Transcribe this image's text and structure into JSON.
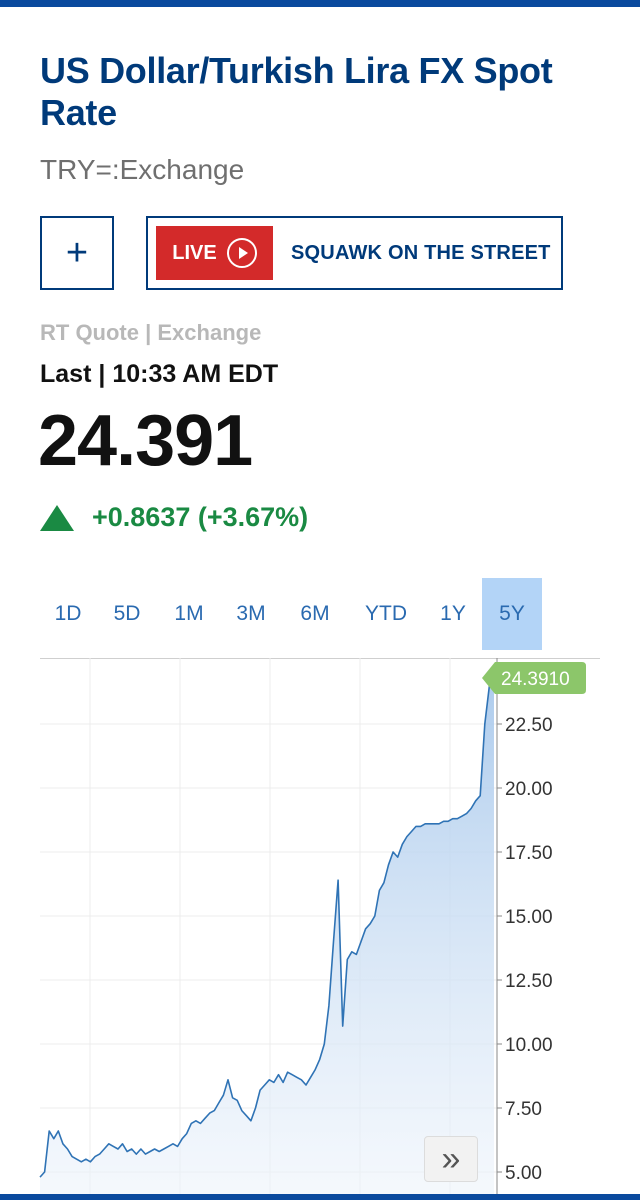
{
  "header": {
    "title": "US Dollar/Turkish Lira FX Spot Rate",
    "symbol": "TRY=:Exchange"
  },
  "actions": {
    "add_label": "+",
    "live_label": "LIVE",
    "live_show": "SQUAWK ON THE STREET"
  },
  "quote": {
    "source": "RT Quote | Exchange",
    "last_label": "Last",
    "time": "10:33 AM EDT",
    "price": "24.391",
    "change": "+0.8637 (+3.67%)"
  },
  "tabs": [
    {
      "label": "1D",
      "active": false
    },
    {
      "label": "5D",
      "active": false
    },
    {
      "label": "1M",
      "active": false
    },
    {
      "label": "3M",
      "active": false
    },
    {
      "label": "6M",
      "active": false
    },
    {
      "label": "YTD",
      "active": false
    },
    {
      "label": "1Y",
      "active": false
    },
    {
      "label": "5Y",
      "active": true
    }
  ],
  "colors": {
    "brand": "#003a7a",
    "positive": "#1a8a43",
    "live": "#d32a2a",
    "line": "#2f73b5",
    "current_tag": "#8cc66a"
  },
  "chart_data": {
    "type": "area",
    "current_value_label": "24.3910",
    "current_value": 24.391,
    "y_ticks": [
      "22.50",
      "20.00",
      "17.50",
      "15.00",
      "12.50",
      "10.00",
      "7.50",
      "5.00"
    ],
    "ylim": [
      4.8,
      25.0
    ],
    "grid": true,
    "values": [
      4.8,
      5.0,
      6.6,
      6.3,
      6.6,
      6.1,
      5.9,
      5.6,
      5.5,
      5.4,
      5.5,
      5.4,
      5.6,
      5.7,
      5.9,
      6.1,
      6.0,
      5.9,
      6.1,
      5.8,
      5.9,
      5.7,
      5.9,
      5.7,
      5.8,
      5.9,
      5.8,
      5.9,
      6.0,
      6.1,
      6.0,
      6.3,
      6.5,
      6.9,
      7.0,
      6.9,
      7.1,
      7.3,
      7.4,
      7.7,
      8.0,
      8.6,
      7.9,
      7.8,
      7.4,
      7.2,
      7.0,
      7.5,
      8.2,
      8.4,
      8.6,
      8.5,
      8.8,
      8.5,
      8.9,
      8.8,
      8.7,
      8.6,
      8.4,
      8.7,
      9.0,
      9.4,
      10.0,
      11.5,
      14.0,
      16.4,
      10.7,
      13.3,
      13.6,
      13.5,
      14.0,
      14.5,
      14.7,
      15.0,
      16.0,
      16.3,
      17.0,
      17.5,
      17.3,
      17.8,
      18.1,
      18.3,
      18.5,
      18.5,
      18.6,
      18.6,
      18.6,
      18.6,
      18.7,
      18.7,
      18.8,
      18.8,
      18.9,
      19.0,
      19.2,
      19.5,
      19.7,
      22.5,
      24.0,
      24.391
    ]
  }
}
